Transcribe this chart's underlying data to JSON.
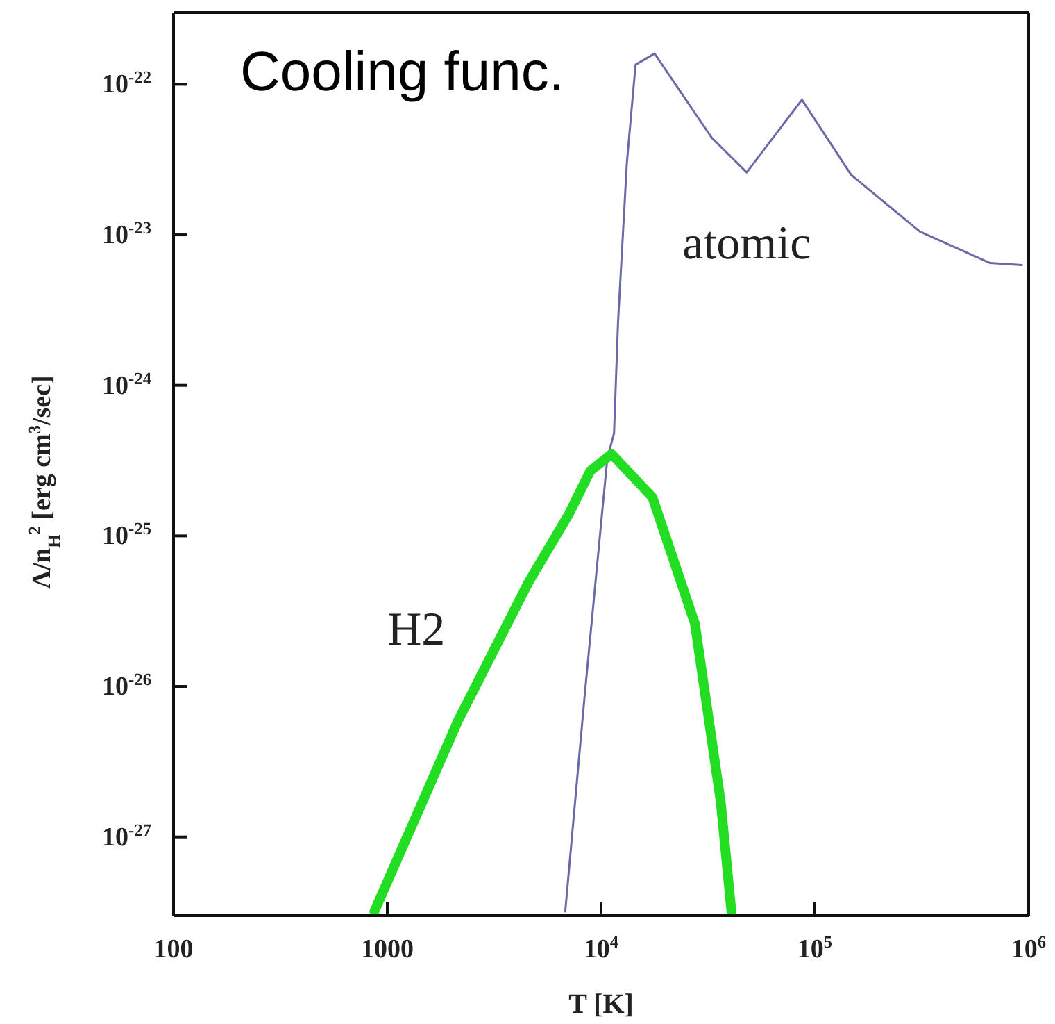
{
  "chart_data": {
    "type": "line",
    "title": "Cooling func.",
    "xlabel": "T [K]",
    "ylabel": "Λ/n$_{H}$$^{2}$ [erg cm$^{3}$/sec]",
    "log": "xy",
    "xlim": [
      100,
      1000000
    ],
    "ylim": [
      3e-28,
      3e-22
    ],
    "xticks": [
      100,
      1000,
      {
        "value": 10000,
        "label": "10$^{4}$"
      },
      {
        "value": 100000,
        "label": "10$^{5}$"
      },
      {
        "value": 1000000,
        "label": "10$^{6}$"
      }
    ],
    "yticks": [
      {
        "value": 1e-27,
        "label": "10$^{-27}$"
      },
      {
        "value": 1e-26,
        "label": "10$^{-26}$"
      },
      {
        "value": 1e-25,
        "label": "10$^{-25}$"
      },
      {
        "value": 1e-24,
        "label": "10$^{-24}$"
      },
      {
        "value": 1e-23,
        "label": "10$^{-23}$"
      },
      {
        "value": 1e-22,
        "label": "10$^{-22}$"
      }
    ],
    "marker": "none",
    "line_style": "solid",
    "series": [
      {
        "name": "atomic",
        "color": "#6a6aa8",
        "x": [
          6800,
          7350,
          8400,
          10700,
          11500,
          12000,
          13200,
          14500,
          17800,
          33000,
          48000,
          87000,
          148000,
          310000,
          660000,
          930000
        ],
        "values": [
          3.2e-28,
          1.1e-27,
          9e-27,
          3.3e-25,
          4.8e-25,
          2.6e-24,
          3e-23,
          1.35e-22,
          1.6e-22,
          4.4e-23,
          2.6e-23,
          7.9e-23,
          2.5e-23,
          1.05e-23,
          6.5e-24,
          6.3e-24
        ]
      },
      {
        "name": "H2",
        "color": "#22dd22",
        "x": [
          870,
          2140,
          4570,
          7080,
          8900,
          11200,
          17400,
          27500,
          36300,
          40700
        ],
        "values": [
          3.2e-28,
          5.9e-27,
          4.9e-26,
          1.4e-25,
          2.7e-25,
          3.5e-25,
          1.8e-25,
          2.6e-26,
          1.7e-27,
          3.2e-28
        ]
      }
    ]
  }
}
